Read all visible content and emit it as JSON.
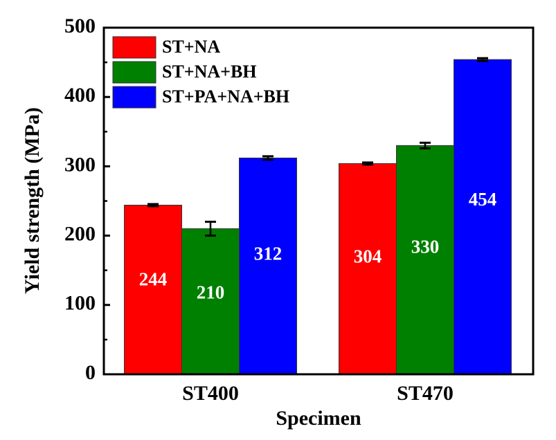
{
  "chart_data": {
    "type": "bar",
    "title": "",
    "xlabel": "Specimen",
    "ylabel": "Yield strength (MPa)",
    "ylim": [
      0,
      500
    ],
    "yticks": [
      0,
      100,
      200,
      300,
      400,
      500
    ],
    "yticks_minor": [
      50,
      150,
      250,
      350,
      450
    ],
    "grid": false,
    "legend_position": "top-left",
    "categories": [
      "ST400",
      "ST470"
    ],
    "series": [
      {
        "name": "ST+NA",
        "color": "#ff0000",
        "values": [
          244,
          304
        ],
        "errors": [
          1.5,
          1.5
        ],
        "labels": [
          "244",
          "304"
        ]
      },
      {
        "name": "ST+NA+BH",
        "color": "#008000",
        "values": [
          210,
          330
        ],
        "errors": [
          10,
          4
        ],
        "labels": [
          "210",
          "330"
        ]
      },
      {
        "name": "ST+PA+NA+BH",
        "color": "#0000ff",
        "values": [
          312,
          454
        ],
        "errors": [
          2.5,
          2
        ],
        "labels": [
          "312",
          "454"
        ]
      }
    ]
  }
}
